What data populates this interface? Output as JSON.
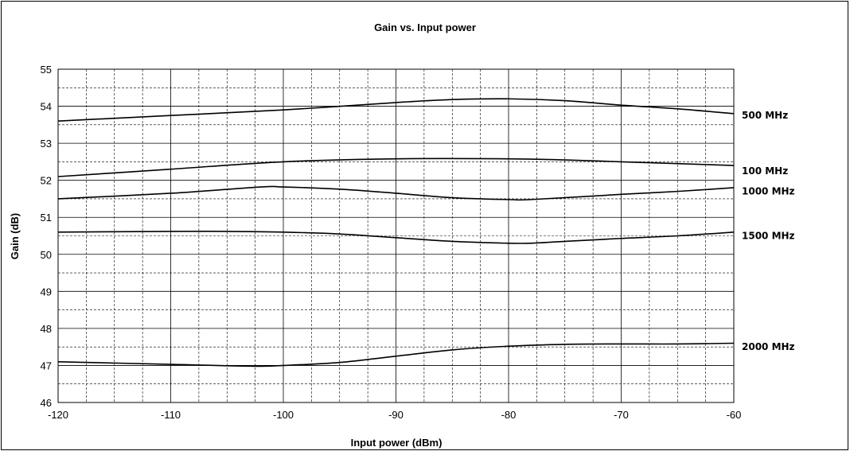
{
  "chart_data": {
    "type": "line",
    "title": "Gain vs. Input power",
    "xlabel": "Input power (dBm)",
    "ylabel": "Gain (dB)",
    "xlim": [
      -120,
      -60
    ],
    "ylim": [
      46,
      55
    ],
    "x_ticks": [
      "-120",
      "-110",
      "-100",
      "-90",
      "-80",
      "-70",
      "-60"
    ],
    "y_ticks": [
      "46",
      "47",
      "48",
      "49",
      "50",
      "51",
      "52",
      "53",
      "54",
      "55"
    ],
    "grid": true,
    "series": [
      {
        "name": "500 MHz",
        "color": "#000000",
        "x": [
          -120,
          -110,
          -100,
          -90,
          -85,
          -80,
          -75,
          -70,
          -65,
          -60
        ],
        "y": [
          53.6,
          53.75,
          53.9,
          54.1,
          54.18,
          54.2,
          54.15,
          54.03,
          53.93,
          53.8
        ]
      },
      {
        "name": "100 MHz",
        "color": "#000000",
        "x": [
          -120,
          -110,
          -100,
          -90,
          -80,
          -75,
          -70,
          -65,
          -60
        ],
        "y": [
          52.1,
          52.3,
          52.5,
          52.58,
          52.58,
          52.55,
          52.5,
          52.45,
          52.4
        ]
      },
      {
        "name": "1000 MHz",
        "color": "#000000",
        "x": [
          -120,
          -110,
          -102,
          -100,
          -95,
          -90,
          -85,
          -80,
          -78,
          -70,
          -65,
          -60
        ],
        "y": [
          51.5,
          51.65,
          51.82,
          51.82,
          51.76,
          51.65,
          51.53,
          51.48,
          51.48,
          51.62,
          51.7,
          51.8
        ]
      },
      {
        "name": "1500 MHz",
        "color": "#000000",
        "x": [
          -120,
          -110,
          -105,
          -100,
          -95,
          -90,
          -85,
          -80,
          -78,
          -75,
          -70,
          -65,
          -60
        ],
        "y": [
          50.6,
          50.62,
          50.62,
          50.6,
          50.55,
          50.45,
          50.35,
          50.3,
          50.3,
          50.35,
          50.43,
          50.5,
          50.6
        ]
      },
      {
        "name": "2000 MHz",
        "color": "#000000",
        "x": [
          -120,
          -110,
          -103,
          -100,
          -95,
          -90,
          -85,
          -80,
          -75,
          -70,
          -65,
          -60
        ],
        "y": [
          47.1,
          47.03,
          46.98,
          47.0,
          47.08,
          47.25,
          47.42,
          47.52,
          47.57,
          47.58,
          47.58,
          47.6
        ]
      }
    ],
    "series_labels": [
      {
        "text": "500 MHz",
        "y": 53.75
      },
      {
        "text": "100 MHz",
        "y": 52.25
      },
      {
        "text": "1000 MHz",
        "y": 51.7
      },
      {
        "text": "1500 MHz",
        "y": 50.5
      },
      {
        "text": "2000 MHz",
        "y": 47.5
      }
    ]
  }
}
